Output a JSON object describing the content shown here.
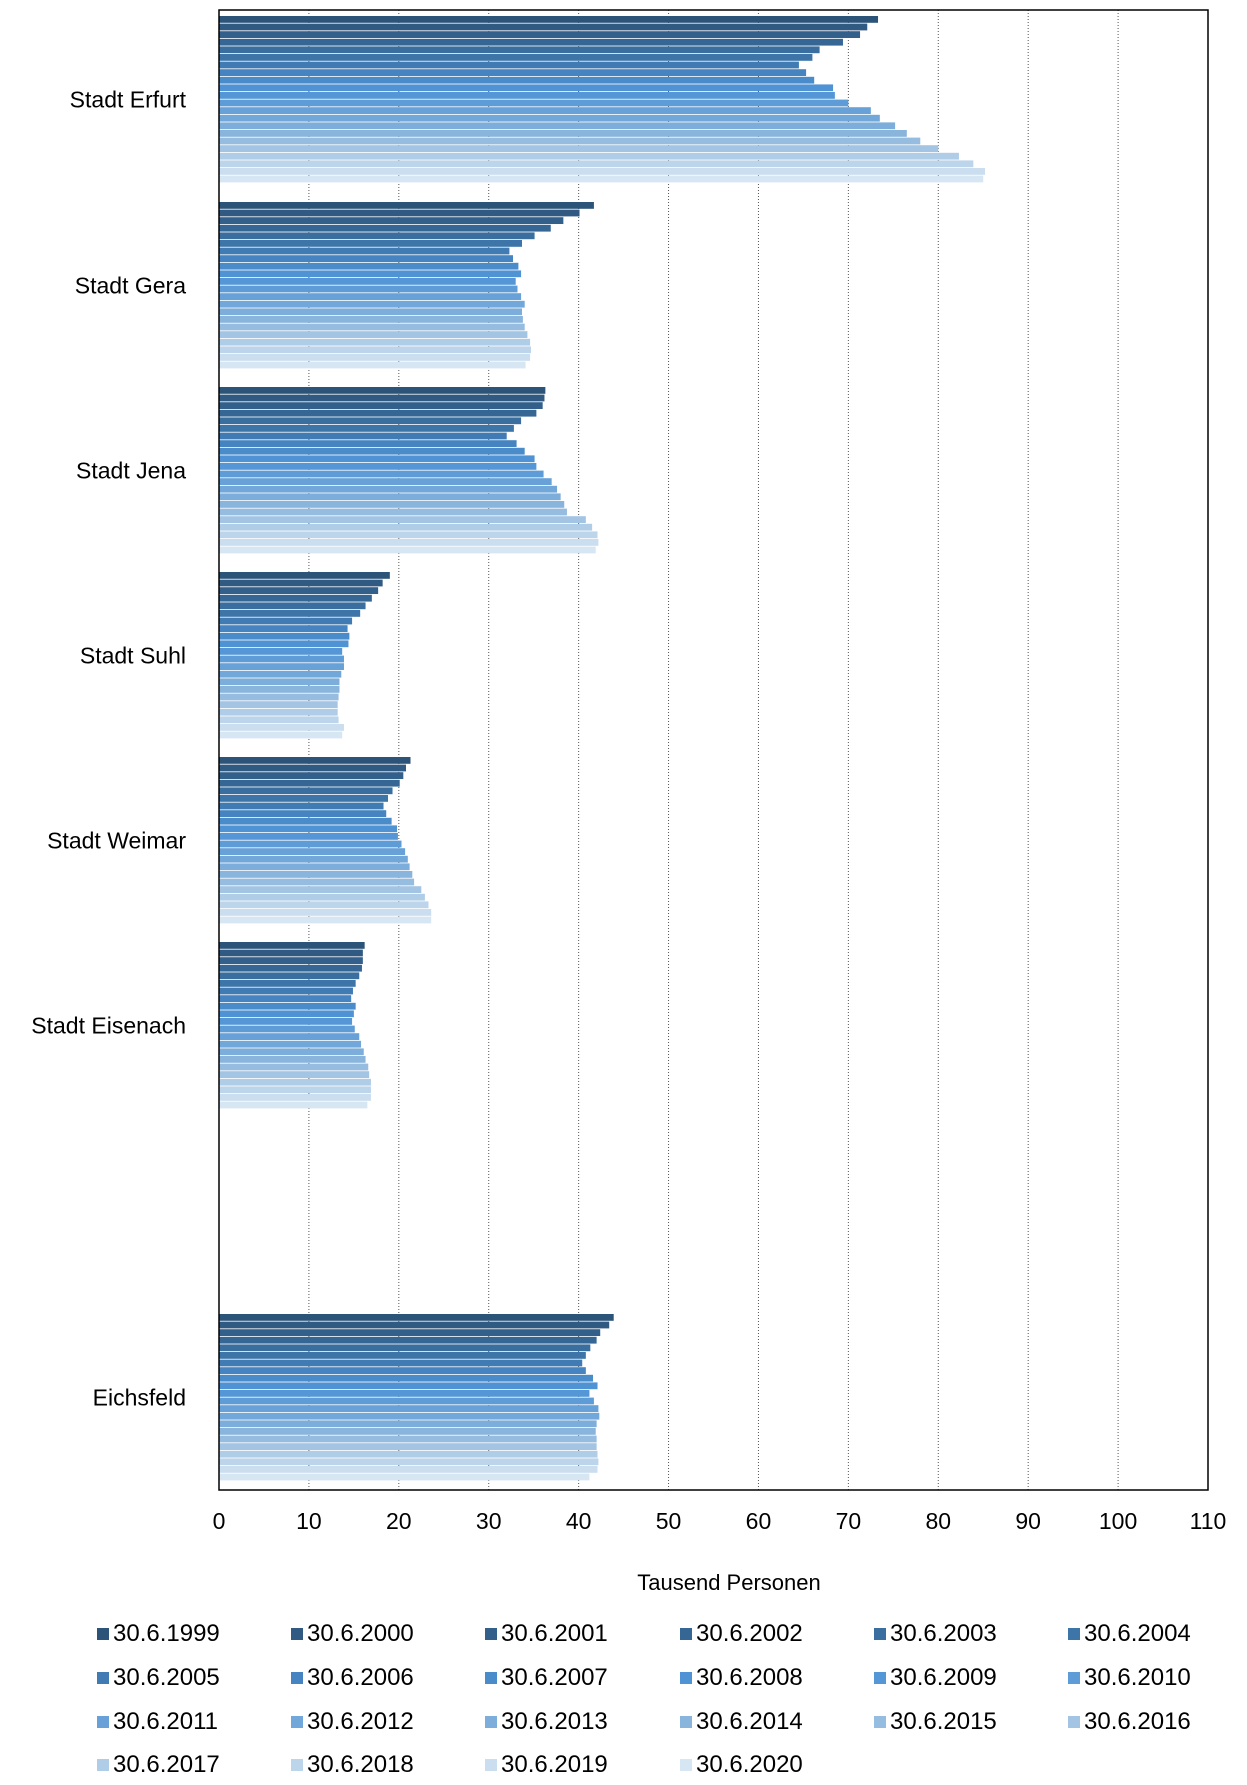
{
  "chart_data": {
    "type": "bar",
    "orientation": "horizontal",
    "title": "",
    "xlabel": "Tausend Personen",
    "ylabel": "",
    "xlim": [
      0,
      110
    ],
    "xticks": [
      "0",
      "10",
      "20",
      "30",
      "40",
      "50",
      "60",
      "70",
      "80",
      "90",
      "100",
      "110"
    ],
    "grid": "vertical dotted",
    "legend_position": "bottom",
    "categories": [
      "Stadt Erfurt",
      "Stadt Gera",
      "Stadt Jena",
      "Stadt Suhl",
      "Stadt Weimar",
      "Stadt Eisenach",
      "Eichsfeld"
    ],
    "series": [
      {
        "name": "30.6.1999",
        "color": "#2c5479",
        "values": [
          73.3,
          41.7,
          36.3,
          19.0,
          21.3,
          16.2,
          43.9
        ]
      },
      {
        "name": "30.6.2000",
        "color": "#305a82",
        "values": [
          72.1,
          40.1,
          36.2,
          18.2,
          20.8,
          16.0,
          43.4
        ]
      },
      {
        "name": "30.6.2001",
        "color": "#33608b",
        "values": [
          71.3,
          38.3,
          36.0,
          17.7,
          20.5,
          16.0,
          42.4
        ]
      },
      {
        "name": "30.6.2002",
        "color": "#366794",
        "values": [
          69.4,
          36.9,
          35.3,
          17.0,
          20.1,
          15.9,
          42.0
        ]
      },
      {
        "name": "30.6.2003",
        "color": "#3a6e9e",
        "values": [
          66.8,
          35.1,
          33.6,
          16.3,
          19.3,
          15.6,
          41.3
        ]
      },
      {
        "name": "30.6.2004",
        "color": "#3d75a8",
        "values": [
          66.0,
          33.7,
          32.8,
          15.7,
          18.8,
          15.2,
          40.8
        ]
      },
      {
        "name": "30.6.2005",
        "color": "#407cb3",
        "values": [
          64.5,
          32.3,
          32.0,
          14.8,
          18.3,
          14.9,
          40.4
        ]
      },
      {
        "name": "30.6.2006",
        "color": "#4584c0",
        "values": [
          65.3,
          32.7,
          33.1,
          14.3,
          18.6,
          14.7,
          40.8
        ]
      },
      {
        "name": "30.6.2007",
        "color": "#4a8cca",
        "values": [
          66.2,
          33.3,
          34.0,
          14.5,
          19.2,
          15.2,
          41.6
        ]
      },
      {
        "name": "30.6.2008",
        "color": "#4f93d4",
        "values": [
          68.3,
          33.6,
          35.1,
          14.4,
          19.8,
          15.0,
          42.1
        ]
      },
      {
        "name": "30.6.2009",
        "color": "#5597d6",
        "values": [
          68.5,
          33.0,
          35.3,
          13.7,
          19.9,
          14.8,
          41.2
        ]
      },
      {
        "name": "30.6.2010",
        "color": "#5e9cd7",
        "values": [
          70.0,
          33.2,
          36.1,
          13.9,
          20.3,
          15.1,
          41.7
        ]
      },
      {
        "name": "30.6.2011",
        "color": "#67a1d8",
        "values": [
          72.5,
          33.6,
          37.0,
          13.9,
          20.7,
          15.6,
          42.2
        ]
      },
      {
        "name": "30.6.2012",
        "color": "#72a7da",
        "values": [
          73.5,
          34.0,
          37.6,
          13.6,
          21.0,
          15.8,
          42.3
        ]
      },
      {
        "name": "30.6.2013",
        "color": "#7dadda",
        "values": [
          75.2,
          33.7,
          38.0,
          13.4,
          21.2,
          16.1,
          42.0
        ]
      },
      {
        "name": "30.6.2014",
        "color": "#89b4dc",
        "values": [
          76.5,
          33.8,
          38.4,
          13.4,
          21.5,
          16.3,
          41.9
        ]
      },
      {
        "name": "30.6.2015",
        "color": "#96bcdf",
        "values": [
          78.0,
          34.0,
          38.7,
          13.3,
          21.7,
          16.6,
          42.0
        ]
      },
      {
        "name": "30.6.2016",
        "color": "#a3c4e3",
        "values": [
          80.0,
          34.3,
          40.8,
          13.2,
          22.5,
          16.7,
          42.0
        ]
      },
      {
        "name": "30.6.2017",
        "color": "#b0cde7",
        "values": [
          82.3,
          34.6,
          41.5,
          13.2,
          22.9,
          16.9,
          42.1
        ]
      },
      {
        "name": "30.6.2018",
        "color": "#bdd5eb",
        "values": [
          83.9,
          34.7,
          42.1,
          13.3,
          23.3,
          16.9,
          42.2
        ]
      },
      {
        "name": "30.6.2019",
        "color": "#cbdeef",
        "values": [
          85.2,
          34.6,
          42.2,
          13.9,
          23.6,
          16.9,
          42.1
        ]
      },
      {
        "name": "30.6.2020",
        "color": "#d7e6f3",
        "values": [
          85.0,
          34.1,
          41.9,
          13.7,
          23.6,
          16.5,
          41.2
        ]
      }
    ]
  }
}
